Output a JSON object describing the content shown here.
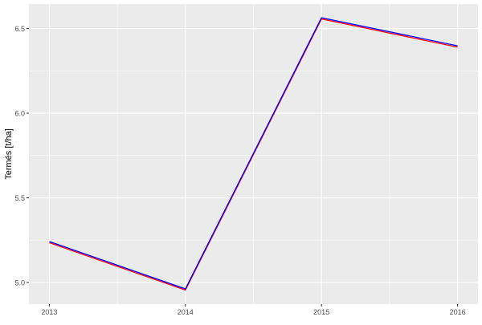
{
  "chart_data": {
    "type": "line",
    "title": "",
    "xlabel": "",
    "ylabel": "Termés [t/ha]",
    "x": [
      2013,
      2014,
      2015,
      2016
    ],
    "x_tick_labels": [
      "2013",
      "2014",
      "2015",
      "2016"
    ],
    "y_ticks": [
      5.0,
      5.5,
      6.0,
      6.5
    ],
    "y_tick_labels": [
      "5.0",
      "5.5",
      "6.0",
      "6.5"
    ],
    "xlim": [
      2012.85,
      2016.15
    ],
    "ylim": [
      4.872,
      6.645
    ],
    "grid": true,
    "legend": "none",
    "series": [
      {
        "color": "#ff0000",
        "values": [
          5.235,
          4.955,
          6.557,
          6.39
        ]
      },
      {
        "color": "#0000ff",
        "values": [
          5.242,
          4.962,
          6.564,
          6.398
        ]
      }
    ],
    "panel_background": "#ebebeb"
  }
}
